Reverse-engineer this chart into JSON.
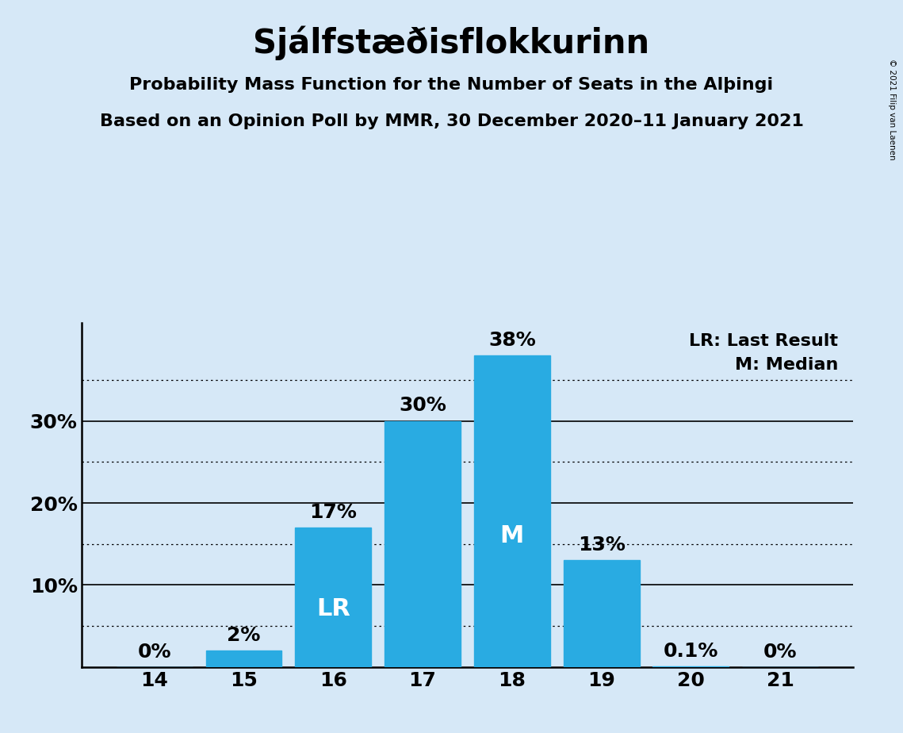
{
  "title": "Sjálfstæðisflokkurinn",
  "subtitle1": "Probability Mass Function for the Number of Seats in the Alþинgi",
  "subtitle2": "Based on an Opinion Poll by MMR, 30 December 2020–11 January 2021",
  "subtitle1_clean": "Probability Mass Function for the Number of Seats in the Alþingi",
  "copyright": "© 2021 Filip van Laenen",
  "categories": [
    14,
    15,
    16,
    17,
    18,
    19,
    20,
    21
  ],
  "values": [
    0.0,
    2.0,
    17.0,
    30.0,
    38.0,
    13.0,
    0.1,
    0.0
  ],
  "labels": [
    "0%",
    "2%",
    "17%",
    "30%",
    "38%",
    "13%",
    "0.1%",
    "0%"
  ],
  "bar_color": "#29ABE2",
  "background_color": "#D6E8F7",
  "lr_bar": 16,
  "median_bar": 18,
  "lr_label": "LR",
  "median_label": "M",
  "legend_lr": "LR: Last Result",
  "legend_m": "M: Median",
  "ylim": [
    0,
    42
  ],
  "ylabel_ticks": [
    10,
    20,
    30
  ],
  "dotted_yticks": [
    5,
    15,
    25,
    35
  ],
  "title_fontsize": 30,
  "subtitle_fontsize": 16,
  "tick_fontsize": 18,
  "bar_label_fontsize": 18,
  "inner_label_fontsize": 22,
  "legend_fontsize": 16
}
